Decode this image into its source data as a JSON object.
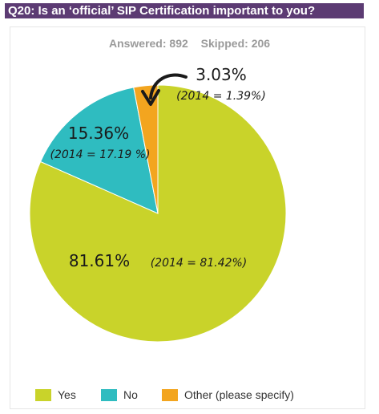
{
  "header": {
    "title": "Q20: Is an ‘official’ SIP Certification important to you?"
  },
  "stats": {
    "answered_label": "Answered:",
    "answered_value": "892",
    "skipped_label": "Skipped:",
    "skipped_value": "206"
  },
  "colors": {
    "title_bar": "#5c3b73",
    "yes": "#c9d32a",
    "no": "#2fbcc0",
    "other": "#f3a51f"
  },
  "chart_data": {
    "type": "pie",
    "title": "Q20: Is an ‘official’ SIP Certification important to you?",
    "slices": [
      {
        "label": "Yes",
        "value": 81.61,
        "value_label": "81.61%",
        "note": "(2014 = 81.42%)",
        "color": "#c9d32a"
      },
      {
        "label": "No",
        "value": 15.36,
        "value_label": "15.36%",
        "note": "(2014 = 17.19 %)",
        "color": "#2fbcc0"
      },
      {
        "label": "Other (please specify)",
        "value": 3.03,
        "value_label": "3.03%",
        "note": "(2014 = 1.39%)",
        "color": "#f3a51f"
      }
    ],
    "legend_position": "bottom"
  }
}
